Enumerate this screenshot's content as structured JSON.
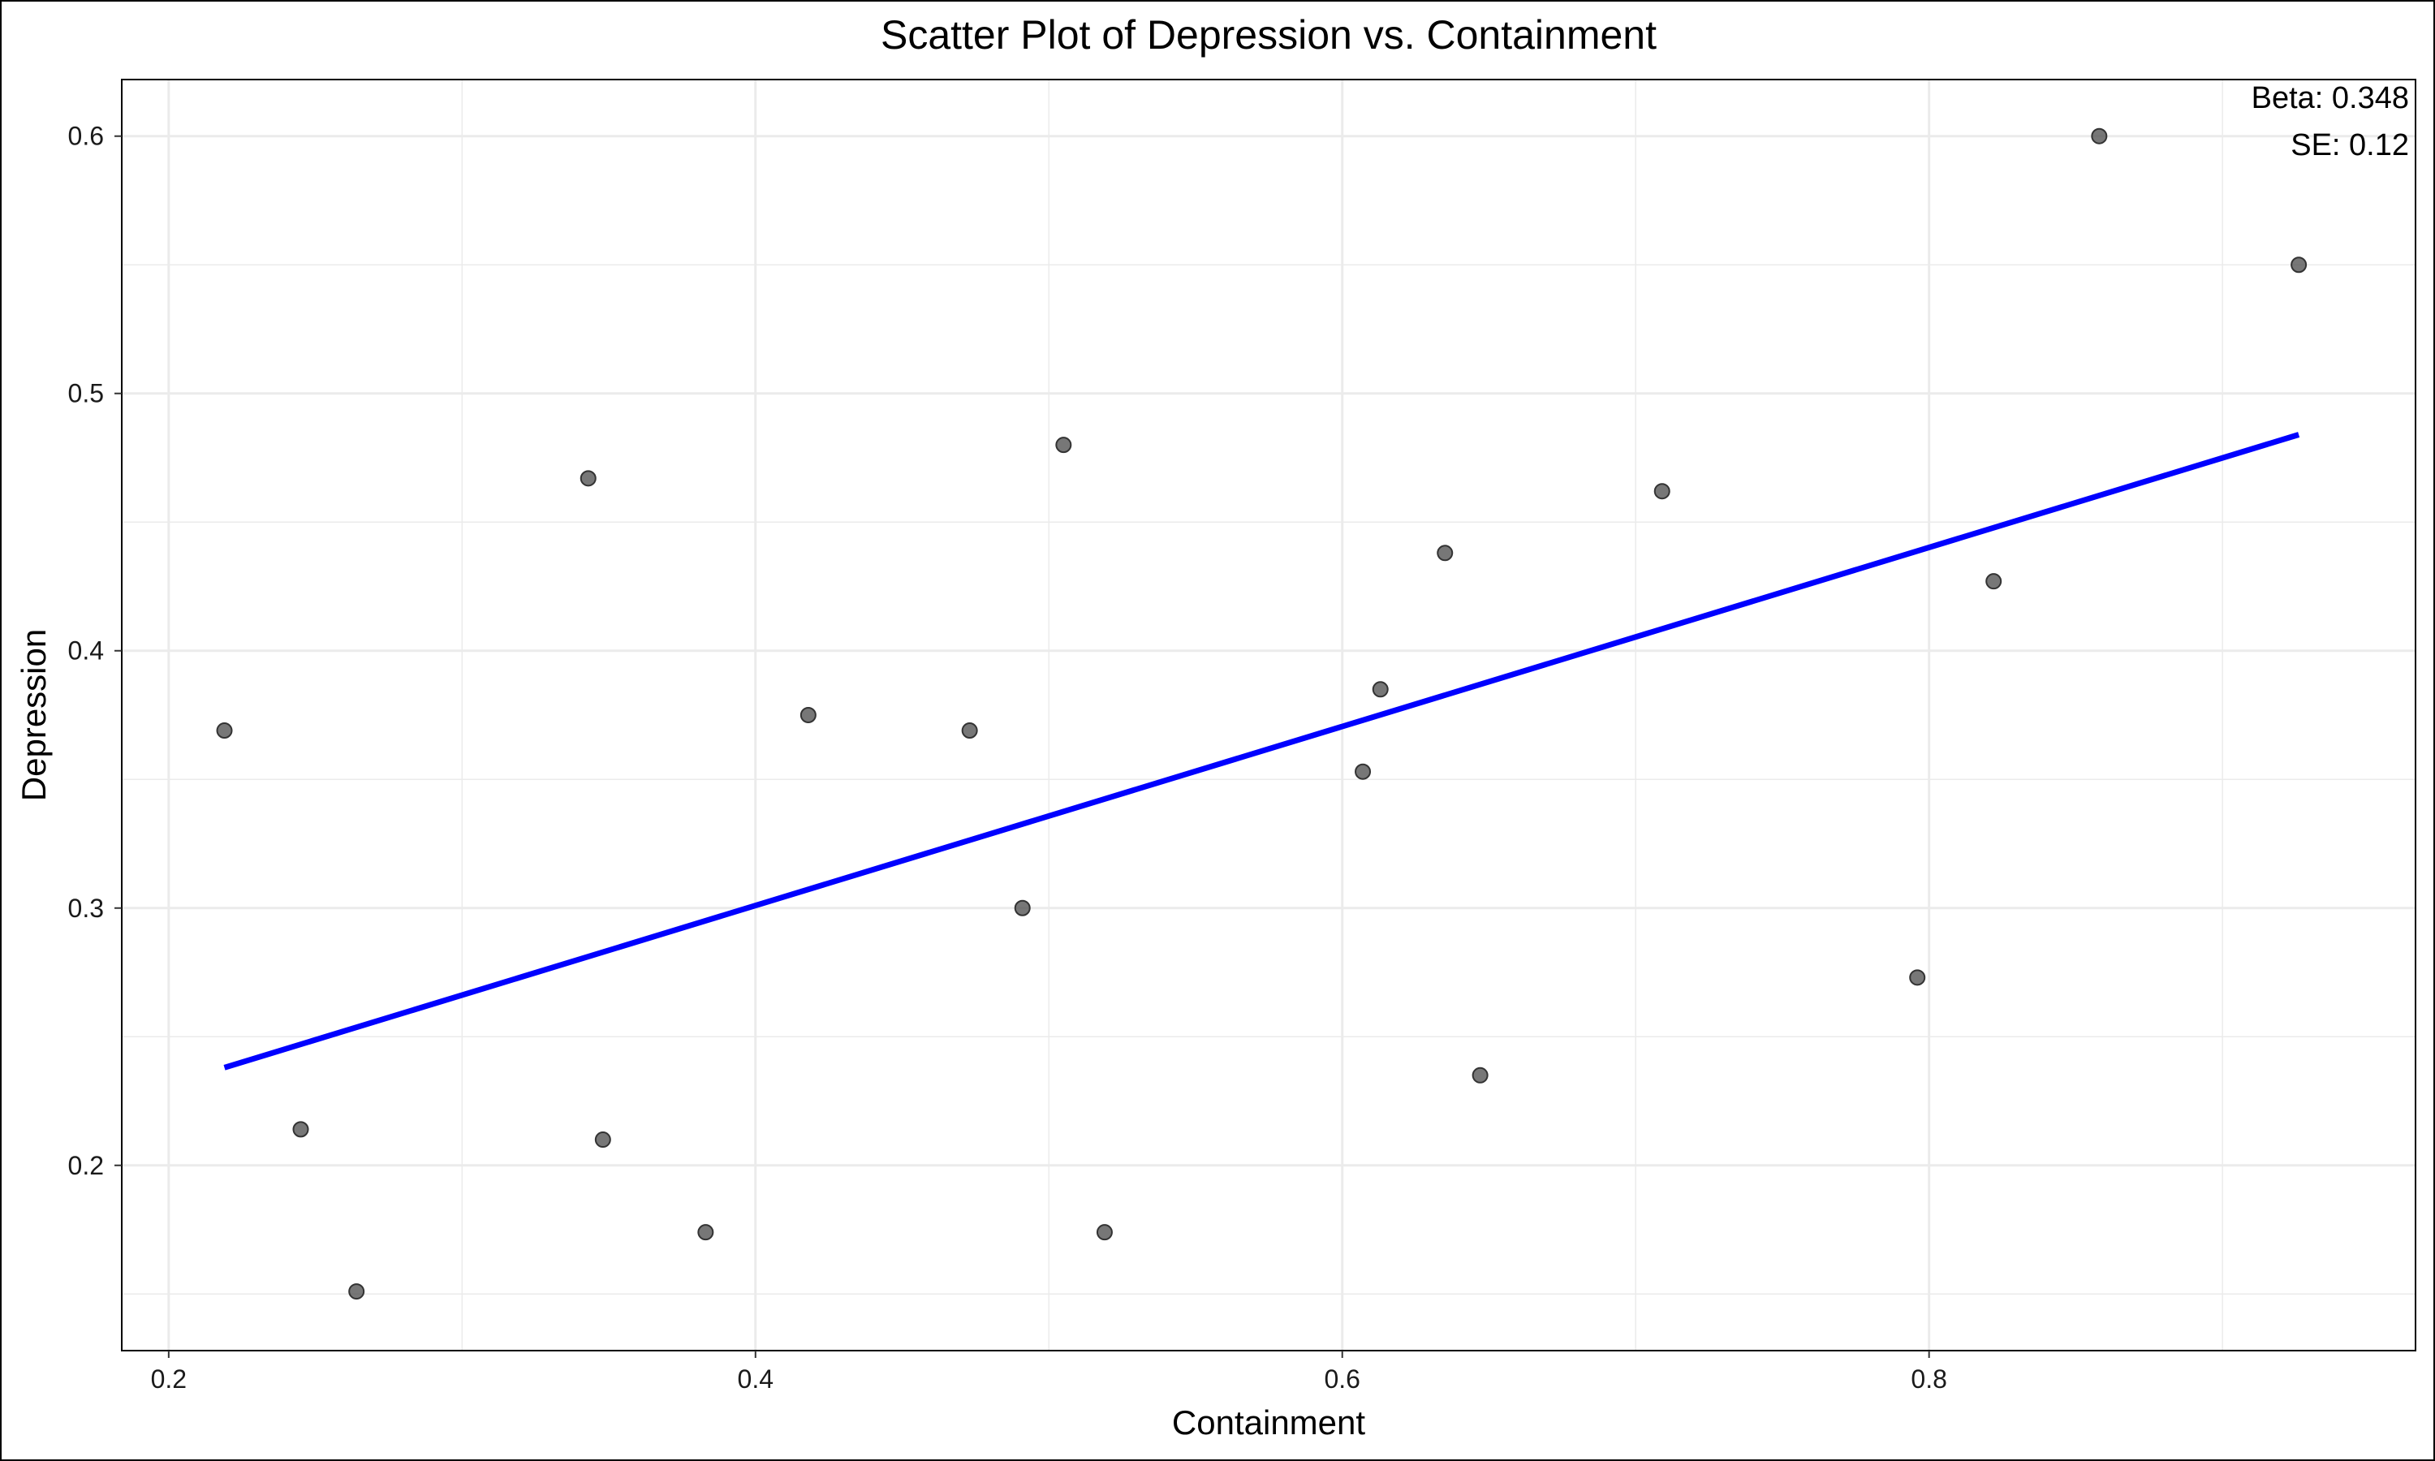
{
  "chart_data": {
    "type": "scatter",
    "title": "Scatter Plot of Depression vs. Containment",
    "xlabel": "Containment",
    "ylabel": "Depression",
    "xlim": [
      0.184,
      0.9658
    ],
    "ylim": [
      0.128,
      0.622
    ],
    "xticks": [
      0.2,
      0.4,
      0.6,
      0.8
    ],
    "xtick_labels": [
      "0.2",
      "0.4",
      "0.6",
      "0.8"
    ],
    "yticks": [
      0.2,
      0.3,
      0.4,
      0.5,
      0.6
    ],
    "ytick_labels": [
      "0.2",
      "0.3",
      "0.4",
      "0.5",
      "0.6"
    ],
    "grid": true,
    "points": [
      {
        "x": 0.219,
        "y": 0.369
      },
      {
        "x": 0.245,
        "y": 0.214
      },
      {
        "x": 0.264,
        "y": 0.151
      },
      {
        "x": 0.343,
        "y": 0.467
      },
      {
        "x": 0.348,
        "y": 0.21
      },
      {
        "x": 0.383,
        "y": 0.174
      },
      {
        "x": 0.418,
        "y": 0.375
      },
      {
        "x": 0.473,
        "y": 0.369
      },
      {
        "x": 0.491,
        "y": 0.3
      },
      {
        "x": 0.505,
        "y": 0.48
      },
      {
        "x": 0.519,
        "y": 0.174
      },
      {
        "x": 0.607,
        "y": 0.353
      },
      {
        "x": 0.613,
        "y": 0.385
      },
      {
        "x": 0.635,
        "y": 0.438
      },
      {
        "x": 0.647,
        "y": 0.235
      },
      {
        "x": 0.709,
        "y": 0.462
      },
      {
        "x": 0.796,
        "y": 0.273
      },
      {
        "x": 0.822,
        "y": 0.427
      },
      {
        "x": 0.858,
        "y": 0.6
      },
      {
        "x": 0.926,
        "y": 0.55
      }
    ],
    "fit_line": {
      "x": [
        0.219,
        0.926
      ],
      "y": [
        0.238,
        0.484
      ]
    },
    "colors": {
      "points": "#555555",
      "fit_line": "#0000ff",
      "grid": "#ebebeb",
      "panel_border": "#000000"
    },
    "annotations": [
      {
        "label": "Beta: 0.348"
      },
      {
        "label": "SE: 0.12"
      }
    ]
  }
}
